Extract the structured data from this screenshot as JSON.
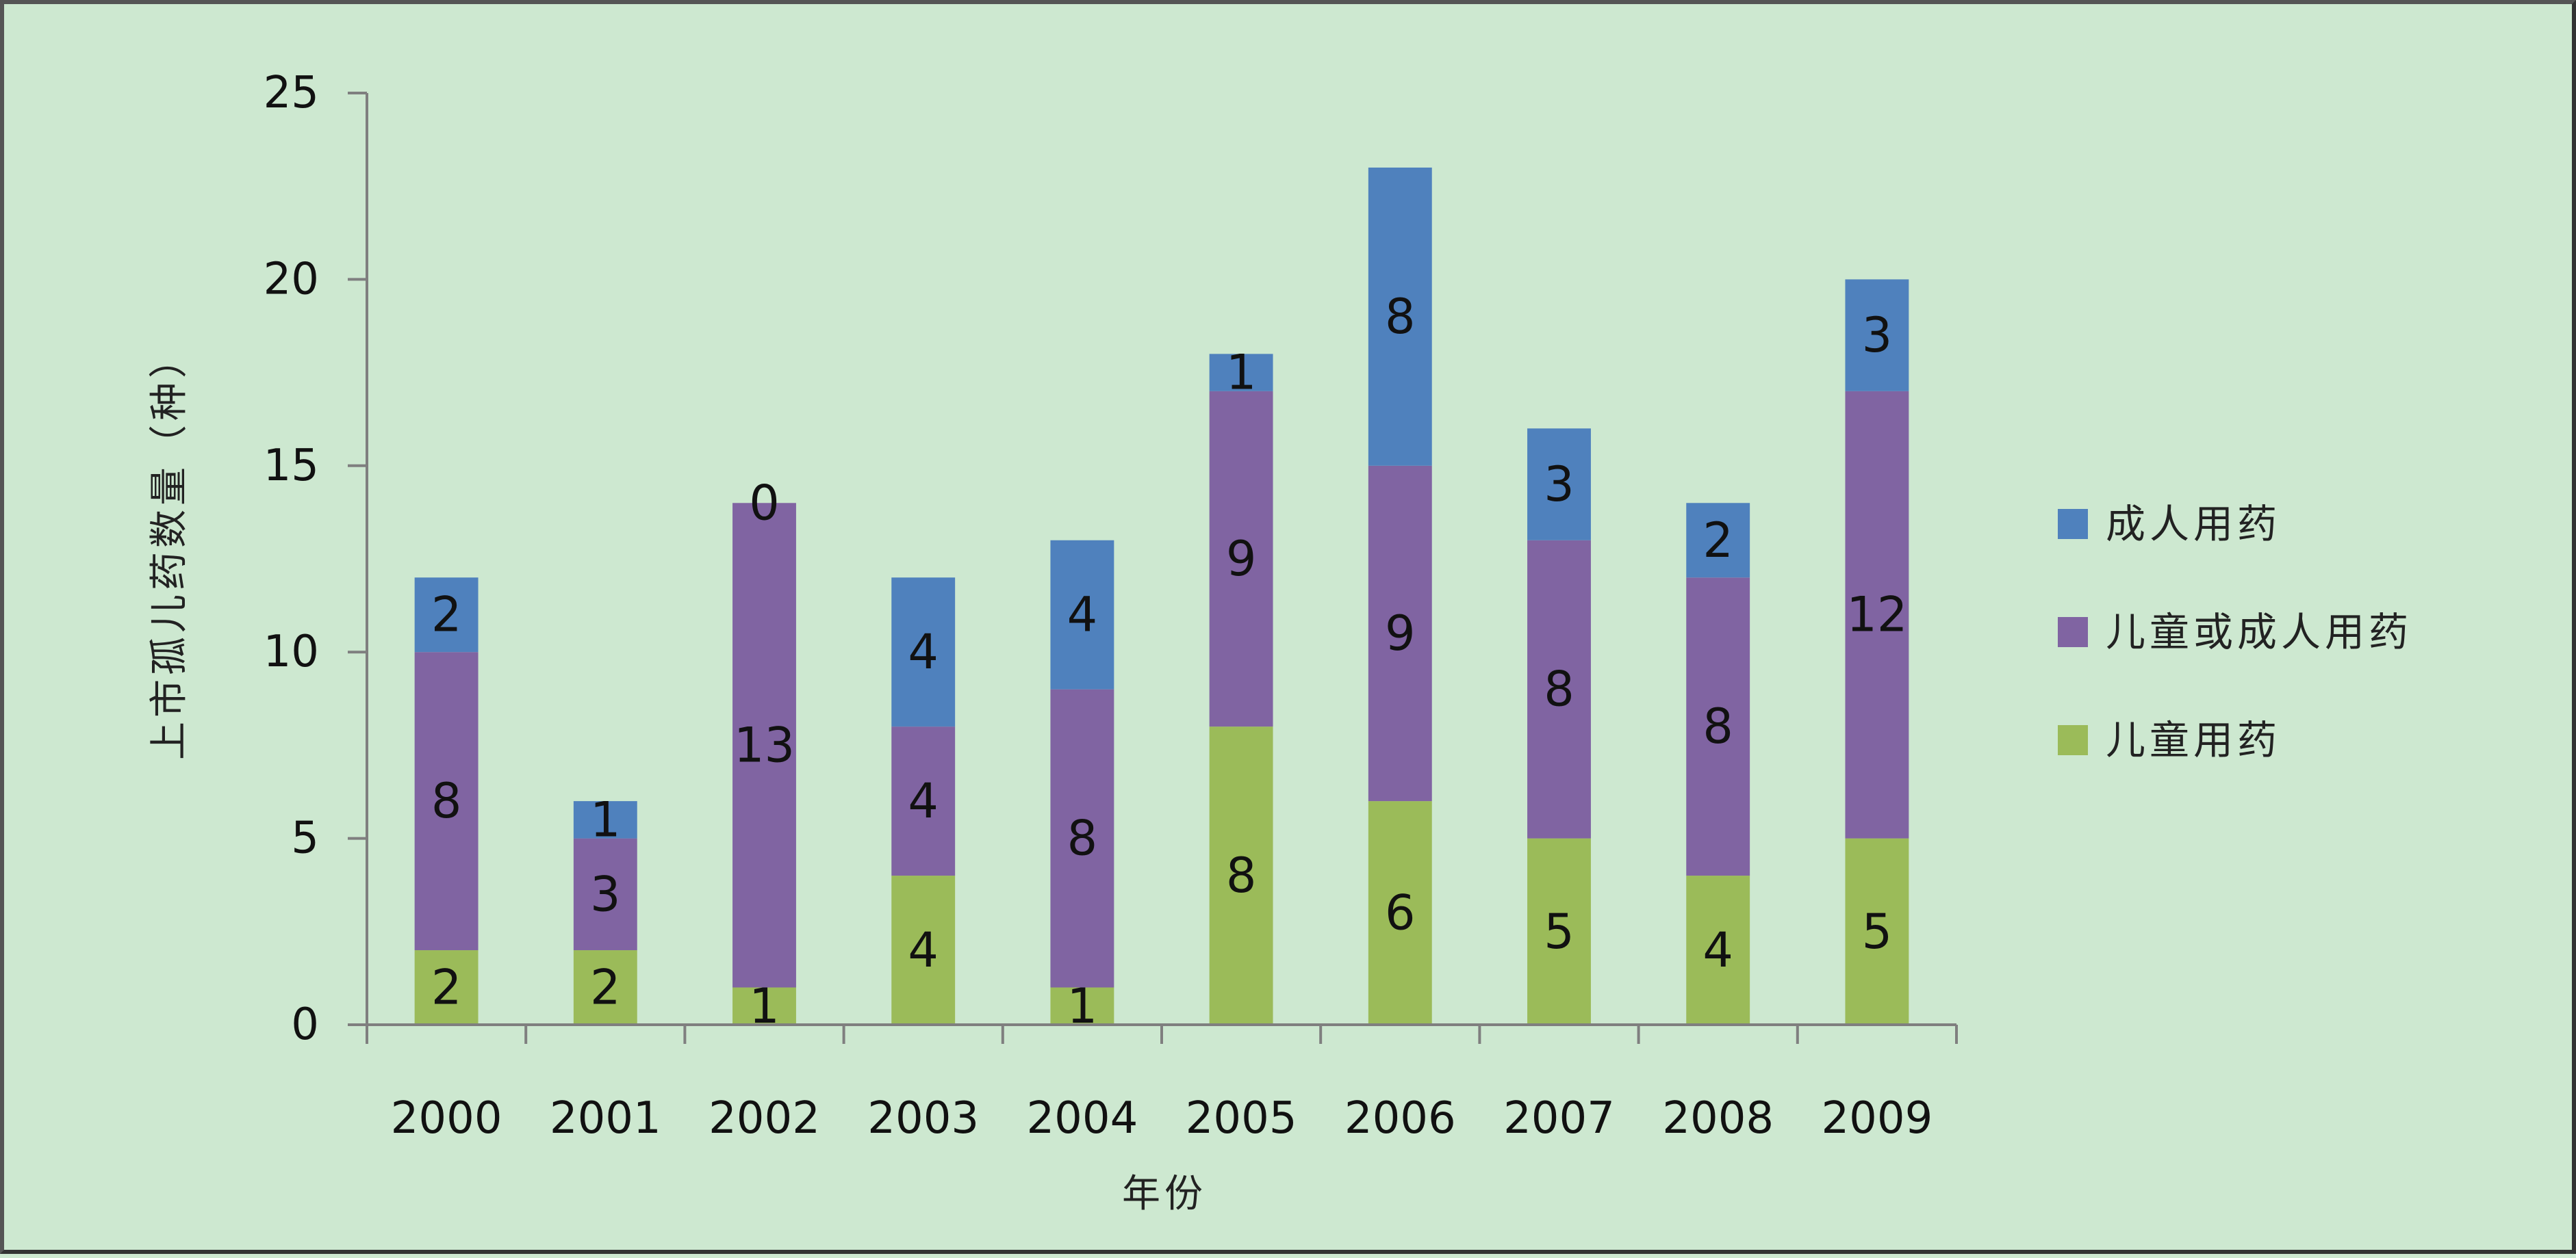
{
  "chart_data": {
    "type": "bar",
    "stacked": true,
    "title": "",
    "xlabel": "年份",
    "ylabel": "上市孤儿药数量（种）",
    "ylim": [
      0,
      25
    ],
    "yticks": [
      0,
      5,
      10,
      15,
      20,
      25
    ],
    "grid": false,
    "legend_position": "right",
    "categories": [
      "2000",
      "2001",
      "2002",
      "2003",
      "2004",
      "2005",
      "2006",
      "2007",
      "2008",
      "2009"
    ],
    "series": [
      {
        "name": "儿童用药",
        "color": "#9bbb59",
        "values": [
          2,
          2,
          1,
          4,
          1,
          8,
          6,
          5,
          4,
          5
        ]
      },
      {
        "name": "儿童或成人用药",
        "color": "#8064a2",
        "values": [
          8,
          3,
          13,
          4,
          8,
          9,
          9,
          8,
          8,
          12
        ]
      },
      {
        "name": "成人用药",
        "color": "#4f81bd",
        "values": [
          2,
          1,
          0,
          4,
          4,
          1,
          8,
          3,
          2,
          3
        ]
      }
    ],
    "legend_order": [
      "成人用药",
      "儿童或成人用药",
      "儿童用药"
    ],
    "axis_color": "#7f7f7f",
    "background_color": "#cde8d0"
  }
}
